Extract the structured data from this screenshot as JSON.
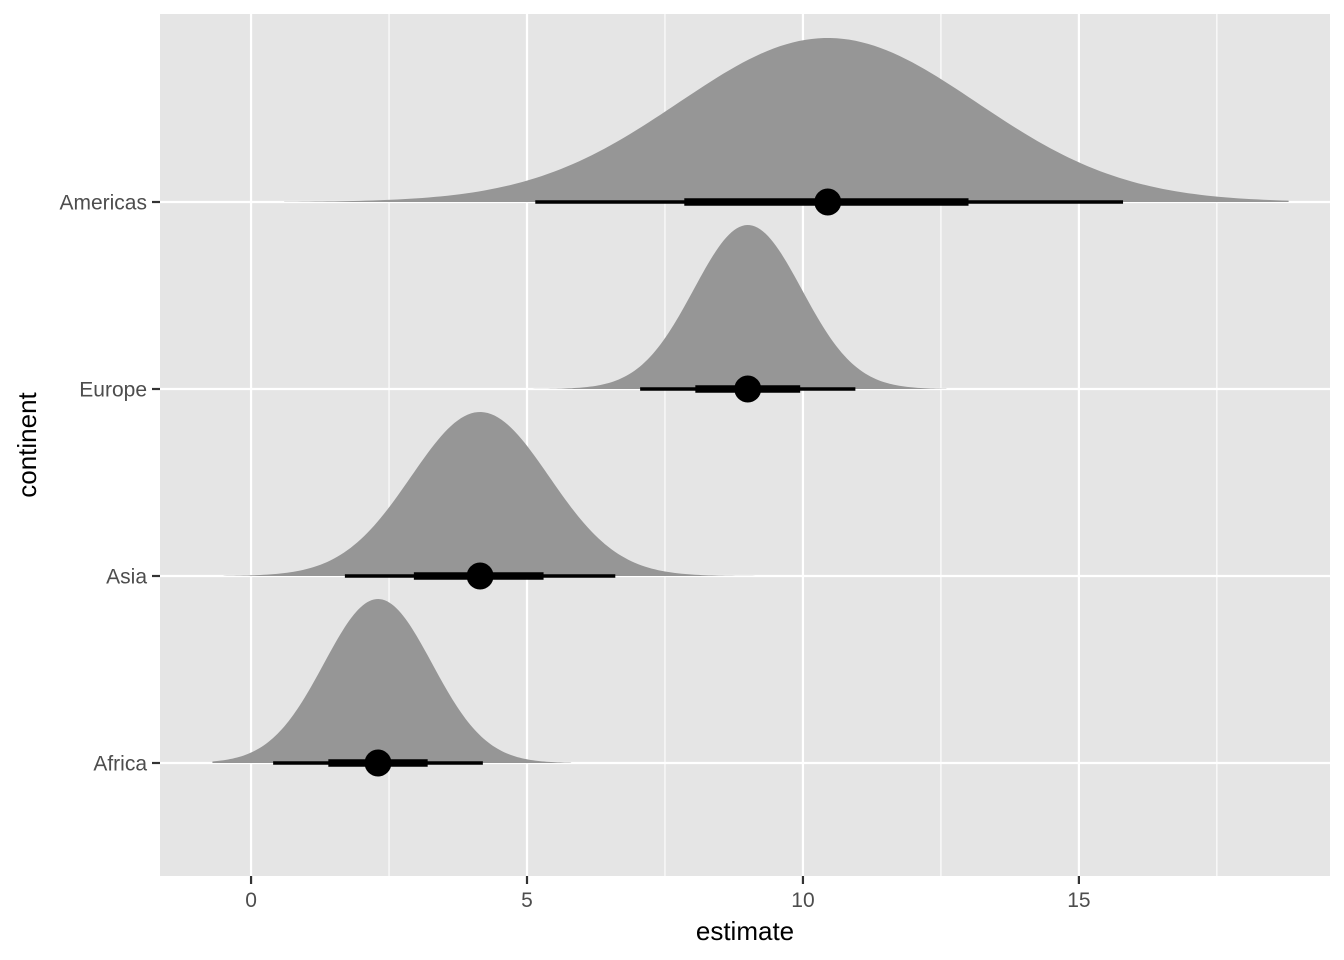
{
  "chart_data": {
    "type": "halfeye",
    "xlabel": "estimate",
    "ylabel": "continent",
    "xlim": [
      -1.65,
      19.55
    ],
    "x_ticks": [
      0,
      5,
      10,
      15
    ],
    "x_tick_labels": [
      "0",
      "5",
      "10",
      "15"
    ],
    "categories": [
      "Africa",
      "Asia",
      "Europe",
      "Americas"
    ],
    "series": [
      {
        "category": "Africa",
        "estimate": 2.3,
        "interval_66": [
          1.4,
          3.2
        ],
        "interval_95": [
          0.4,
          4.2
        ],
        "sd": 0.98,
        "density_range": [
          -0.7,
          5.8
        ]
      },
      {
        "category": "Asia",
        "estimate": 4.15,
        "interval_66": [
          2.95,
          5.3
        ],
        "interval_95": [
          1.7,
          6.6
        ],
        "sd": 1.25,
        "density_range": [
          -0.5,
          9.2
        ]
      },
      {
        "category": "Europe",
        "estimate": 9.0,
        "interval_66": [
          8.05,
          9.95
        ],
        "interval_95": [
          7.05,
          10.95
        ],
        "sd": 0.98,
        "density_range": [
          5.0,
          12.6
        ]
      },
      {
        "category": "Americas",
        "estimate": 10.45,
        "interval_66": [
          7.85,
          13.0
        ],
        "interval_95": [
          5.15,
          15.8
        ],
        "sd": 2.7,
        "density_range": [
          0.6,
          18.8
        ]
      }
    ],
    "colors": {
      "panel": "#e5e5e5",
      "grid": "#ffffff",
      "density": "#969696",
      "interval": "#000000",
      "tick_mark": "#333333"
    },
    "grid": true,
    "legend": "none"
  }
}
